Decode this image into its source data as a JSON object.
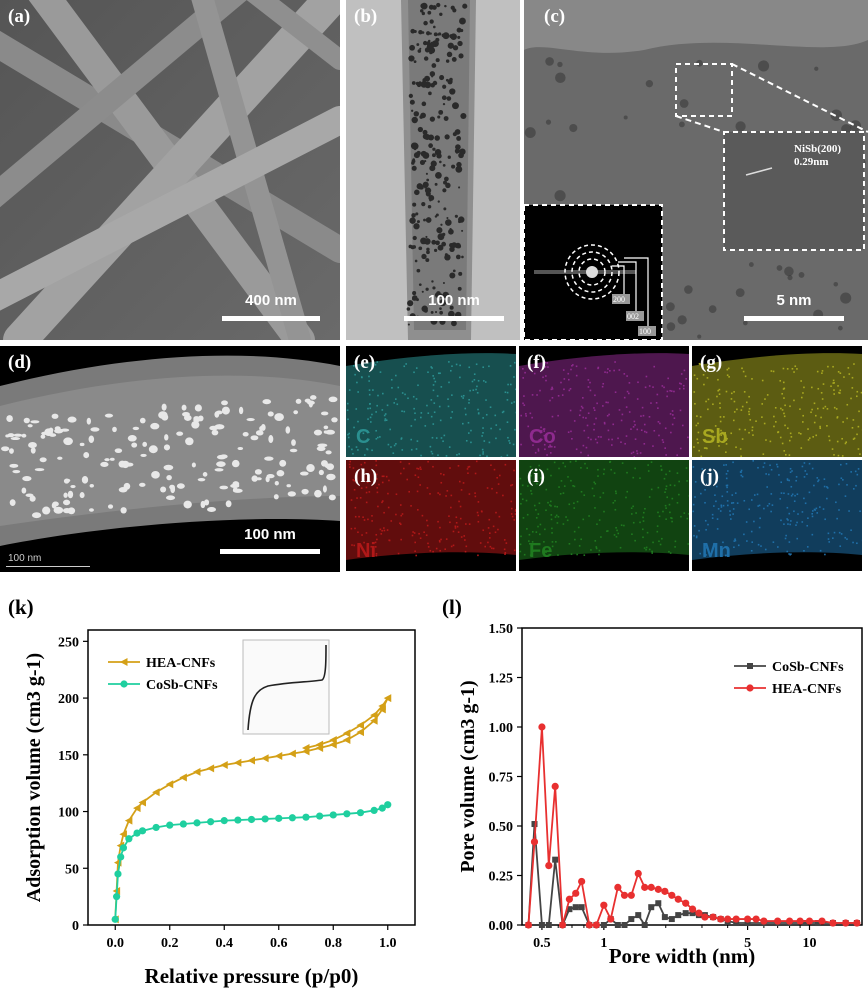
{
  "panels": {
    "a": {
      "label": "(a)",
      "scale": "400 nm"
    },
    "b": {
      "label": "(b)",
      "scale": "100 nm"
    },
    "c": {
      "label": "(c)",
      "scale": "5 nm",
      "inset_text1": "NiSb(200)",
      "inset_text2": "0.29nm",
      "saed_labels": [
        "200",
        "002",
        "100"
      ]
    },
    "d": {
      "label": "(d)",
      "scale": "100 nm",
      "small_scale": "100 nm"
    },
    "maps": [
      {
        "label": "(e)",
        "element": "C",
        "color": "#2a8f8f"
      },
      {
        "label": "(f)",
        "element": "Co",
        "color": "#8e2a8e"
      },
      {
        "label": "(g)",
        "element": "Sb",
        "color": "#a8a820"
      },
      {
        "label": "(h)",
        "element": "Ni",
        "color": "#b01818"
      },
      {
        "label": "(i)",
        "element": "Fe",
        "color": "#1f7a1f"
      },
      {
        "label": "(j)",
        "element": "Mn",
        "color": "#1f6fa8"
      }
    ]
  },
  "chart_data": [
    {
      "panel": "(k)",
      "type": "line",
      "xlabel": "Relative pressure (p/p0)",
      "ylabel": "Adsorption volume (cm3 g-1)",
      "xlim": [
        -0.1,
        1.1
      ],
      "ylim": [
        0,
        260
      ],
      "xticks": [
        "0.0",
        "0.2",
        "0.4",
        "0.6",
        "0.8",
        "1.0"
      ],
      "yticks": [
        "0",
        "50",
        "100",
        "150",
        "200",
        "250"
      ],
      "legend_placement": "top-left",
      "series": [
        {
          "name": "HEA-CNFs",
          "color": "#d4a017",
          "marker": "triangle-left",
          "x": [
            0.0,
            0.005,
            0.01,
            0.02,
            0.03,
            0.05,
            0.08,
            0.1,
            0.15,
            0.2,
            0.25,
            0.3,
            0.35,
            0.4,
            0.45,
            0.5,
            0.55,
            0.6,
            0.65,
            0.7,
            0.75,
            0.8,
            0.85,
            0.9,
            0.95,
            0.98,
            1.0,
            0.98,
            0.95,
            0.9,
            0.85,
            0.8,
            0.75,
            0.7
          ],
          "y": [
            5,
            30,
            55,
            70,
            80,
            92,
            103,
            108,
            117,
            124,
            130,
            135,
            138,
            141,
            143,
            145,
            147,
            149,
            151,
            153,
            156,
            159,
            163,
            170,
            180,
            190,
            200,
            193,
            185,
            176,
            169,
            163,
            159,
            156
          ]
        },
        {
          "name": "CoSb-CNFs",
          "color": "#1fcf9f",
          "marker": "circle",
          "x": [
            0.0,
            0.005,
            0.01,
            0.02,
            0.03,
            0.05,
            0.08,
            0.1,
            0.15,
            0.2,
            0.25,
            0.3,
            0.35,
            0.4,
            0.45,
            0.5,
            0.55,
            0.6,
            0.65,
            0.7,
            0.75,
            0.8,
            0.85,
            0.9,
            0.95,
            0.98,
            1.0
          ],
          "y": [
            5,
            25,
            45,
            60,
            68,
            76,
            81,
            83,
            86,
            88,
            89,
            90,
            91,
            92,
            92.5,
            93,
            93.5,
            94,
            94.5,
            95,
            96,
            97,
            98,
            99,
            101,
            103,
            106
          ]
        }
      ]
    },
    {
      "panel": "(l)",
      "type": "line",
      "xscale": "log",
      "xlabel": "Pore width (nm)",
      "ylabel": "Pore volume (cm3 g-1)",
      "xlim": [
        0.4,
        18
      ],
      "ylim": [
        0,
        1.5
      ],
      "xticks": [
        "0.5",
        "1",
        "5",
        "10"
      ],
      "yticks": [
        "0.00",
        "0.25",
        "0.50",
        "0.75",
        "1.00",
        "1.25",
        "1.50"
      ],
      "legend_placement": "top-right",
      "series": [
        {
          "name": "CoSb-CNFs",
          "color": "#444444",
          "marker": "square",
          "x": [
            0.43,
            0.46,
            0.5,
            0.54,
            0.58,
            0.63,
            0.68,
            0.73,
            0.78,
            0.85,
            0.92,
            1.0,
            1.08,
            1.17,
            1.26,
            1.36,
            1.47,
            1.58,
            1.7,
            1.84,
            1.98,
            2.14,
            2.3,
            2.5,
            2.7,
            2.9,
            3.1,
            3.4,
            3.7,
            4.0,
            4.4,
            5.0,
            6.0,
            7.0,
            8.0,
            9.5,
            11,
            13,
            15,
            17
          ],
          "y": [
            0.0,
            0.51,
            0.0,
            0.0,
            0.33,
            0.0,
            0.08,
            0.09,
            0.09,
            0.0,
            0.0,
            0.0,
            0.03,
            0.0,
            0.0,
            0.03,
            0.05,
            0.0,
            0.09,
            0.11,
            0.04,
            0.03,
            0.05,
            0.06,
            0.06,
            0.05,
            0.05,
            0.04,
            0.03,
            0.02,
            0.01,
            0.01,
            0.01,
            0.01,
            0.01,
            0.01,
            0.01,
            0.01,
            0.01,
            0.01
          ]
        },
        {
          "name": "HEA-CNFs",
          "color": "#e83030",
          "marker": "circle",
          "x": [
            0.43,
            0.46,
            0.5,
            0.54,
            0.58,
            0.63,
            0.68,
            0.73,
            0.78,
            0.85,
            0.92,
            1.0,
            1.08,
            1.17,
            1.26,
            1.36,
            1.47,
            1.58,
            1.7,
            1.84,
            1.98,
            2.14,
            2.3,
            2.5,
            2.7,
            2.9,
            3.1,
            3.4,
            3.7,
            4.0,
            4.4,
            5.0,
            5.5,
            6.0,
            7.0,
            8.0,
            9.0,
            10.0,
            11.5,
            13,
            15,
            17
          ],
          "y": [
            0.0,
            0.42,
            1.0,
            0.3,
            0.7,
            0.0,
            0.13,
            0.16,
            0.22,
            0.0,
            0.0,
            0.1,
            0.03,
            0.19,
            0.15,
            0.15,
            0.26,
            0.19,
            0.19,
            0.18,
            0.17,
            0.15,
            0.13,
            0.11,
            0.08,
            0.06,
            0.04,
            0.04,
            0.03,
            0.03,
            0.03,
            0.03,
            0.03,
            0.02,
            0.02,
            0.02,
            0.02,
            0.02,
            0.02,
            0.01,
            0.01,
            0.01
          ]
        }
      ]
    }
  ]
}
